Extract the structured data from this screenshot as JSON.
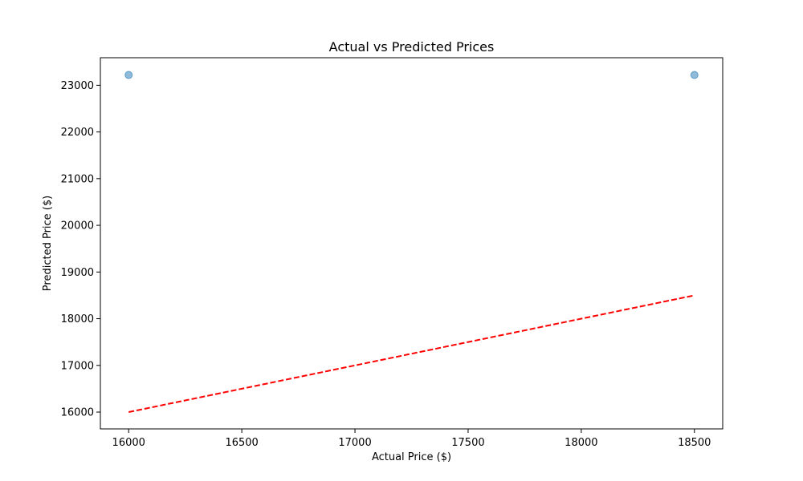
{
  "chart_data": {
    "type": "scatter",
    "title": "Actual vs Predicted Prices",
    "xlabel": "Actual Price ($)",
    "ylabel": "Predicted Price ($)",
    "xlim": [
      15875,
      18625
    ],
    "ylim": [
      15640,
      23590
    ],
    "x_ticks": [
      16000,
      16500,
      17000,
      17500,
      18000,
      18500
    ],
    "y_ticks": [
      16000,
      17000,
      18000,
      19000,
      20000,
      21000,
      22000,
      23000
    ],
    "grid": false,
    "points": [
      {
        "x": 16000,
        "y": 23220
      },
      {
        "x": 18500,
        "y": 23220
      }
    ],
    "point_color": "#1f77b4",
    "reference_line": {
      "from": [
        16000,
        16000
      ],
      "to": [
        18500,
        18500
      ],
      "style": "dashed",
      "color": "#ff0000"
    }
  }
}
